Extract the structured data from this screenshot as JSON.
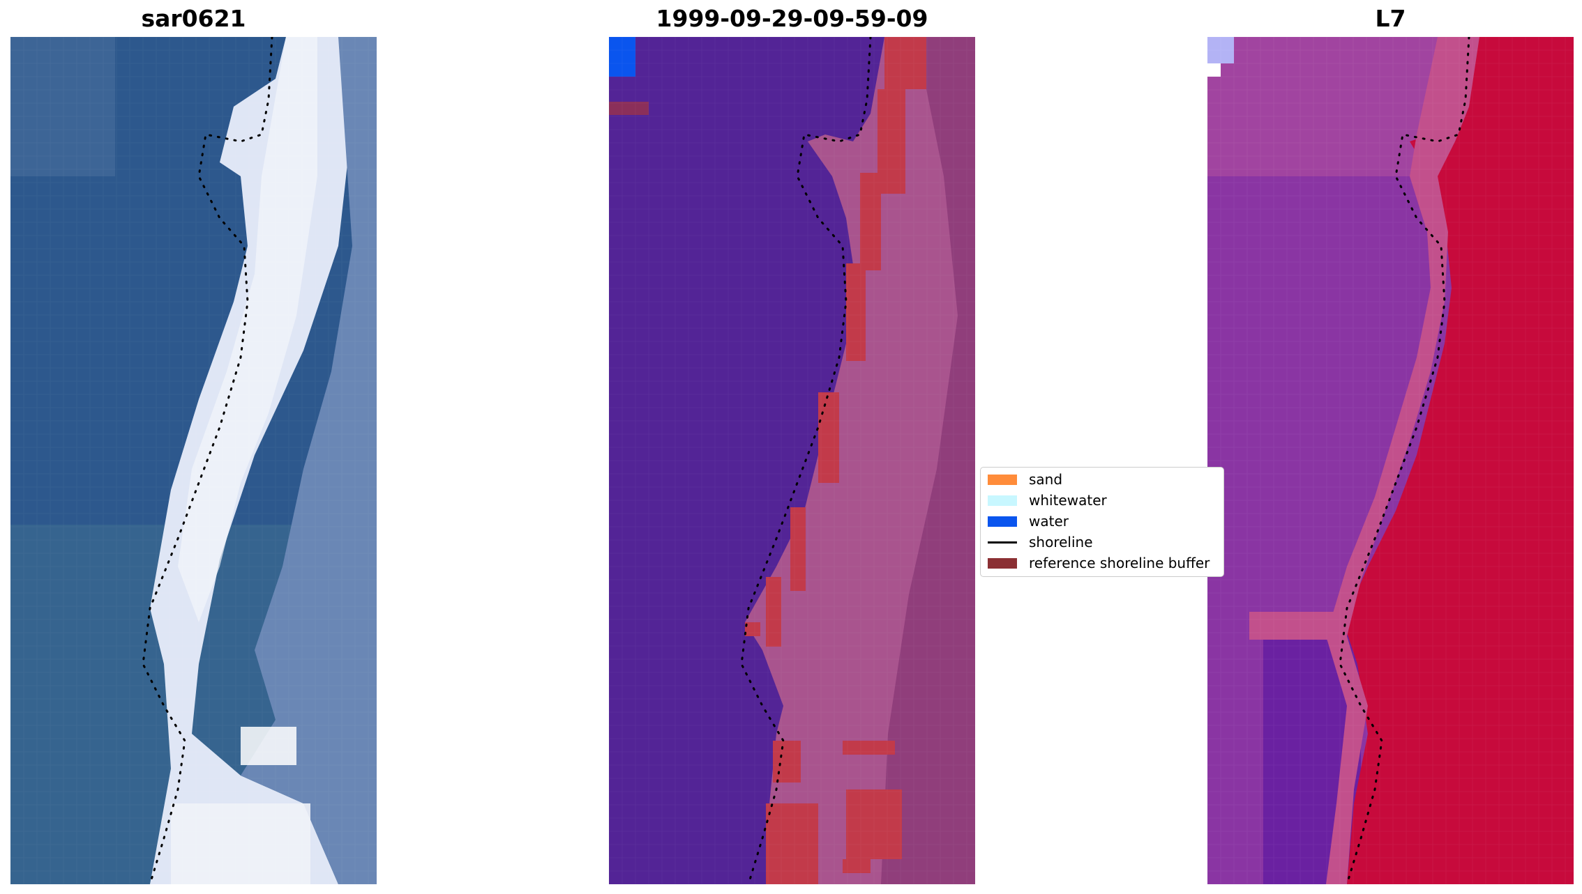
{
  "panels": [
    {
      "title": "sar0621",
      "kind": "rgb"
    },
    {
      "title": "1999-09-29-09-59-09",
      "kind": "classified"
    },
    {
      "title": "L7",
      "kind": "index"
    }
  ],
  "legend": {
    "items": [
      {
        "label": "sand",
        "color": "#ff8c3a",
        "style": "patch"
      },
      {
        "label": "whitewater",
        "color": "#c8f7ff",
        "style": "patch"
      },
      {
        "label": "water",
        "color": "#0a55ee",
        "style": "patch"
      },
      {
        "label": "shoreline",
        "color": "#000000",
        "style": "line"
      },
      {
        "label": "reference shoreline buffer",
        "color": "#8b2f33",
        "style": "patch"
      }
    ]
  },
  "colors": {
    "water_rgb": "#2f5a8c",
    "beach_rgb": "#dfe6f5",
    "water_class": "#532496",
    "buffer": "#c23a4a",
    "index_low": "#7a2da0",
    "index_high": "#c70a3c"
  }
}
